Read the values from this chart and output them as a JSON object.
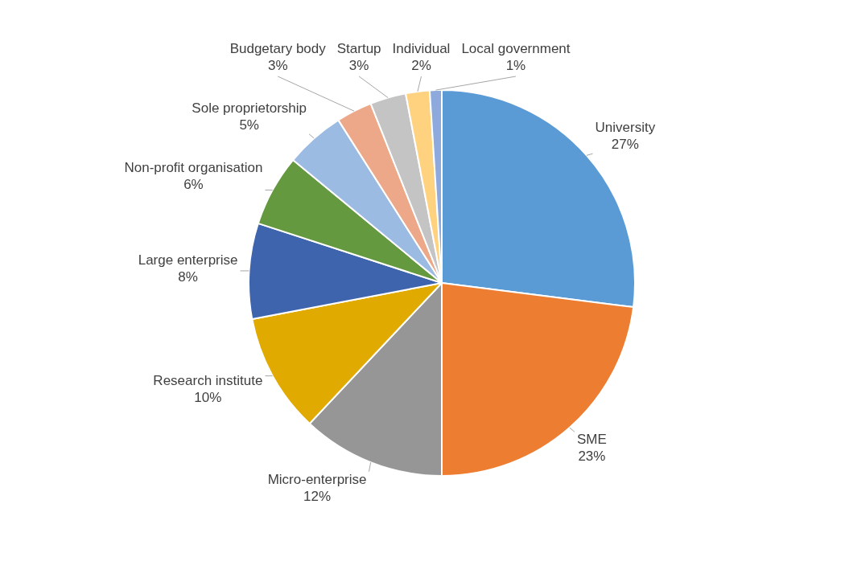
{
  "chart_data": {
    "type": "pie",
    "categories": [
      "University",
      "SME",
      "Micro-enterprise",
      "Research institute",
      "Large enterprise",
      "Non-profit organisation",
      "Sole proprietorship",
      "Budgetary body",
      "Startup",
      "Individual",
      "Local government"
    ],
    "values": [
      27,
      23,
      12,
      10,
      8,
      6,
      5,
      3,
      3,
      2,
      1
    ],
    "colors": [
      "#5b9bd5",
      "#ed7d31",
      "#969696",
      "#e0aa00",
      "#3e64ae",
      "#64993f",
      "#9cbbe2",
      "#eda88a",
      "#c4c4c4",
      "#ffd27f",
      "#8eaadc"
    ],
    "value_labels": [
      "27%",
      "23%",
      "12%",
      "10%",
      "8%",
      "6%",
      "5%",
      "3%",
      "3%",
      "2%",
      "1%"
    ],
    "legend": false
  }
}
